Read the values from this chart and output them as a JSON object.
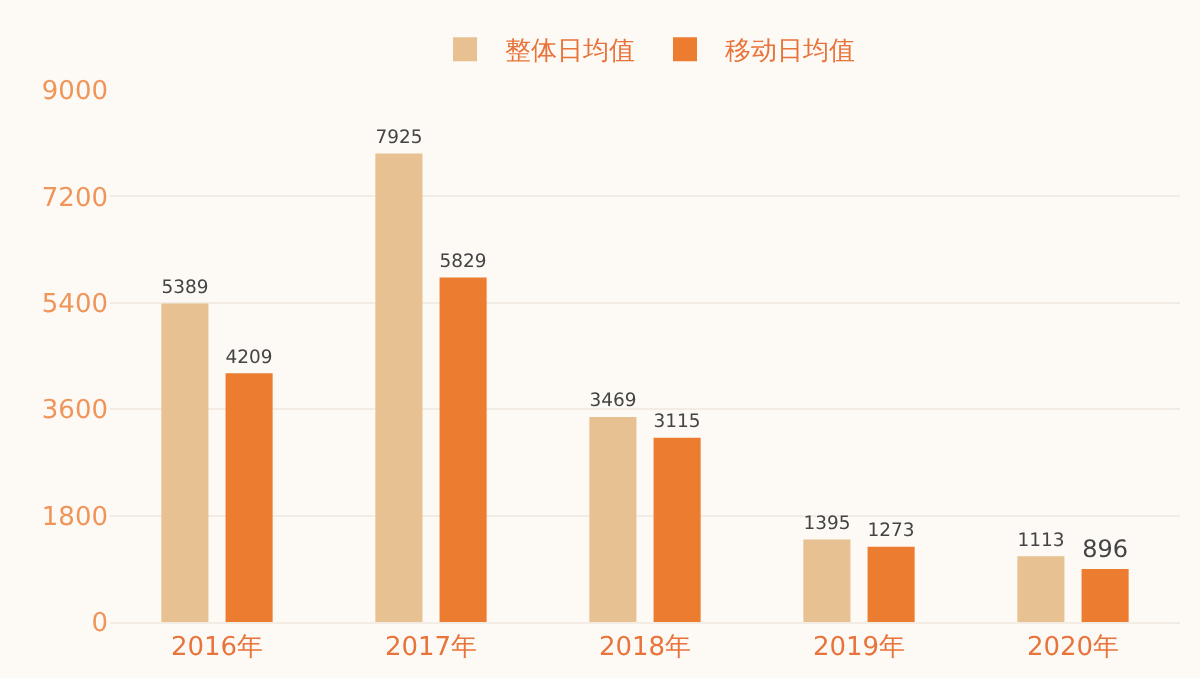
{
  "chart_data": {
    "type": "bar",
    "categories": [
      "2016年",
      "2017年",
      "2018年",
      "2019年",
      "2020年"
    ],
    "series": [
      {
        "name": "整体日均值",
        "color": "#e8c192",
        "values": [
          5389,
          7925,
          3469,
          1395,
          1113
        ]
      },
      {
        "name": "移动日均值",
        "color": "#ec7c30",
        "values": [
          4209,
          5829,
          3115,
          1273,
          896
        ]
      }
    ],
    "ylim": [
      0,
      9000
    ],
    "yticks": [
      0,
      1800,
      3600,
      5400,
      7200,
      9000
    ],
    "grid": "y",
    "legend": "top",
    "data_labels": true
  }
}
